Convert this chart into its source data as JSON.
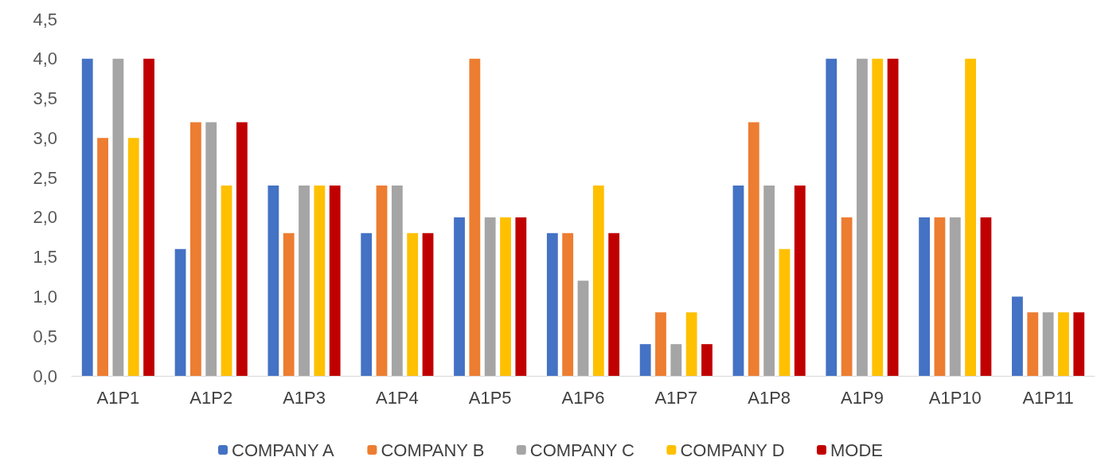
{
  "chart_data": {
    "type": "bar",
    "categories": [
      "A1P1",
      "A1P2",
      "A1P3",
      "A1P4",
      "A1P5",
      "A1P6",
      "A1P7",
      "A1P8",
      "A1P9",
      "A1P10",
      "A1P11"
    ],
    "series": [
      {
        "name": "COMPANY A",
        "color": "#4472c4",
        "values": [
          4,
          1.6,
          2.4,
          1.8,
          2,
          1.8,
          0.4,
          2.4,
          4,
          2,
          1
        ]
      },
      {
        "name": "COMPANY B",
        "color": "#ed7d31",
        "values": [
          3,
          3.2,
          1.8,
          2.4,
          4,
          1.8,
          0.8,
          3.2,
          2,
          2,
          0.8
        ]
      },
      {
        "name": "COMPANY C",
        "color": "#a5a5a5",
        "values": [
          4,
          3.2,
          2.4,
          2.4,
          2,
          1.2,
          0.4,
          2.4,
          4,
          2,
          0.8
        ]
      },
      {
        "name": "COMPANY D",
        "color": "#ffc000",
        "values": [
          3,
          2.4,
          2.4,
          1.8,
          2,
          2.4,
          0.8,
          1.6,
          4,
          4,
          0.8
        ]
      },
      {
        "name": "MODE",
        "color": "#c00000",
        "values": [
          4,
          3.2,
          2.4,
          1.8,
          2,
          1.8,
          0.4,
          2.4,
          4,
          2,
          0.8
        ]
      }
    ],
    "ylim": [
      0,
      4.5
    ],
    "yticks": [
      {
        "value": 0,
        "label": "0,0"
      },
      {
        "value": 0.5,
        "label": "0,5"
      },
      {
        "value": 1,
        "label": "1,0"
      },
      {
        "value": 1.5,
        "label": "1,5"
      },
      {
        "value": 2,
        "label": "2,0"
      },
      {
        "value": 2.5,
        "label": "2,5"
      },
      {
        "value": 3,
        "label": "3,0"
      },
      {
        "value": 3.5,
        "label": "3,5"
      },
      {
        "value": 4,
        "label": "4,0"
      },
      {
        "value": 4.5,
        "label": "4,5"
      }
    ],
    "grid": false,
    "legend": "bottom"
  }
}
